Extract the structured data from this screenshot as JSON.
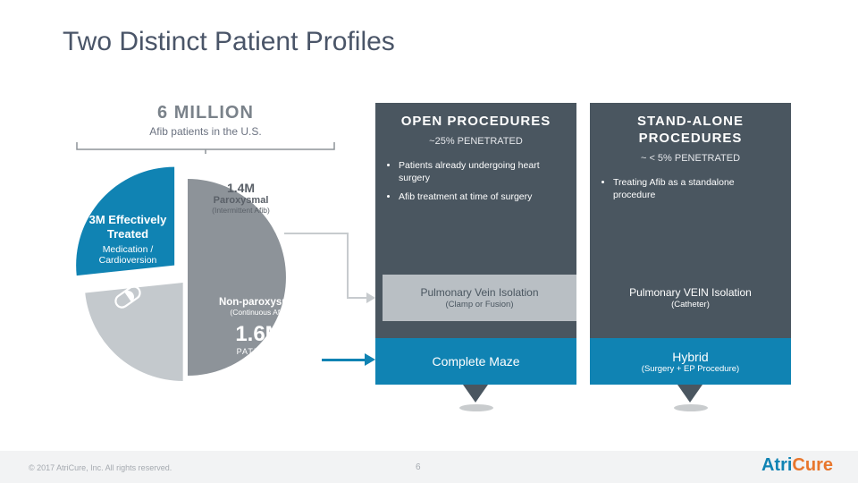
{
  "title": "Two Distinct Patient Profiles",
  "population": {
    "headline": "6 MILLION",
    "sub": "Afib patients in the U.S."
  },
  "pie": {
    "slices": [
      {
        "key": "treated",
        "value": 3.0,
        "color": "#8d9399",
        "label": "3M Effectively Treated",
        "sub": "Medication / Cardioversion"
      },
      {
        "key": "paroxysmal",
        "value": 1.4,
        "color": "#c4c9cd",
        "label": "1.4M",
        "label2": "Paroxysmal",
        "sub": "(Intermittent Afib)",
        "explode": 8
      },
      {
        "key": "nonparoxysmal",
        "value": 1.6,
        "color": "#1083b3",
        "label": "Non-paroxysmal",
        "sub": "(Continuous Afib)",
        "big": "1.6M",
        "big_sub": "PATIENTS",
        "explode": 20
      }
    ],
    "radius": 110,
    "start_angle_deg": -90,
    "bg": "#ffffff"
  },
  "cards": {
    "open": {
      "title": "OPEN  PROCEDURES",
      "penetration": "~25% PENETRATED",
      "bullets": [
        "Patients already undergoing heart surgery",
        "Afib treatment at time of surgery"
      ],
      "pvi_title": "Pulmonary Vein Isolation",
      "pvi_sub": "(Clamp or Fusion)",
      "band": "Complete Maze",
      "band_sub": ""
    },
    "stand": {
      "title": "STAND-ALONE PROCEDURES",
      "penetration": "~ < 5% PENETRATED",
      "bullets": [
        "Treating Afib as a standalone procedure"
      ],
      "pvi_title": "Pulmonary VEIN Isolation",
      "pvi_sub": "(Catheter)",
      "band": "Hybrid",
      "band_sub": "(Surgery + EP Procedure)"
    }
  },
  "colors": {
    "card_bg": "#4a5660",
    "accent_blue": "#1083b3",
    "accent_orange": "#e8762c",
    "grey_box": "#b9bfc4",
    "footer_bg": "#f2f3f4",
    "text_muted": "#7a828a"
  },
  "footer": {
    "copyright": "© 2017 AtriCure, Inc. All rights reserved.",
    "page": "6",
    "logo_part1": "Atri",
    "logo_part2": "Cure"
  }
}
